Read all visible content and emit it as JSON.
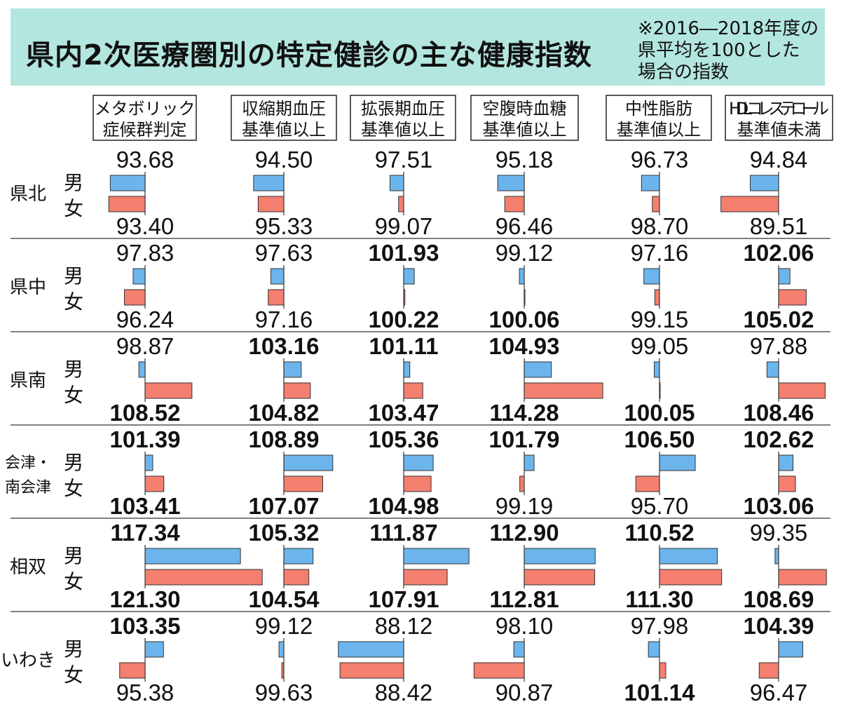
{
  "chart_data": {
    "type": "bar",
    "orientation": "horizontal",
    "title": "県内2次医療圏別の特定健診の主な健康指数",
    "note": [
      "※2016―2018年度の",
      "県平均を100とした",
      "場合の指数"
    ],
    "baseline": 100,
    "categories": [
      {
        "label": [
          "メタボリック",
          "症候群判定"
        ]
      },
      {
        "label": [
          "収縮期血圧",
          "基準値以上"
        ]
      },
      {
        "label": [
          "拡張期血圧",
          "基準値以上"
        ]
      },
      {
        "label": [
          "空腹時血糖",
          "基準値以上"
        ]
      },
      {
        "label": [
          "中性脂肪",
          "基準値以上"
        ]
      },
      {
        "label": [
          "HDLコレステロール",
          "基準値未満"
        ]
      }
    ],
    "series_labels": {
      "male": "男",
      "female": "女"
    },
    "colors": {
      "male": "#6cb5ec",
      "female": "#f47f6e",
      "banner": "#b3e6df"
    },
    "regions": [
      {
        "name": [
          "県北"
        ],
        "male": [
          93.68,
          94.5,
          97.51,
          95.18,
          96.73,
          94.84
        ],
        "female": [
          93.4,
          95.33,
          99.07,
          96.46,
          98.7,
          89.51
        ]
      },
      {
        "name": [
          "県中"
        ],
        "male": [
          97.83,
          97.63,
          101.93,
          99.12,
          97.16,
          102.06
        ],
        "female": [
          96.24,
          97.16,
          100.22,
          100.06,
          99.15,
          105.02
        ]
      },
      {
        "name": [
          "県南"
        ],
        "male": [
          98.87,
          103.16,
          101.11,
          104.93,
          99.05,
          97.88
        ],
        "female": [
          108.52,
          104.82,
          103.47,
          114.28,
          100.05,
          108.46
        ]
      },
      {
        "name": [
          "会津・",
          "南会津"
        ],
        "male": [
          101.39,
          108.89,
          105.36,
          101.79,
          106.5,
          102.62
        ],
        "female": [
          103.41,
          107.07,
          104.98,
          99.19,
          95.7,
          103.06
        ]
      },
      {
        "name": [
          "相双"
        ],
        "male": [
          117.34,
          105.32,
          111.87,
          112.9,
          110.52,
          99.35
        ],
        "female": [
          121.3,
          104.54,
          107.91,
          112.81,
          111.3,
          108.69
        ]
      },
      {
        "name": [
          "いわき"
        ],
        "male": [
          103.35,
          99.12,
          88.12,
          98.1,
          97.98,
          104.39
        ],
        "female": [
          95.38,
          99.63,
          88.42,
          90.87,
          101.14,
          96.47
        ]
      }
    ],
    "bold_rule": "values above 100 shown in bold"
  }
}
